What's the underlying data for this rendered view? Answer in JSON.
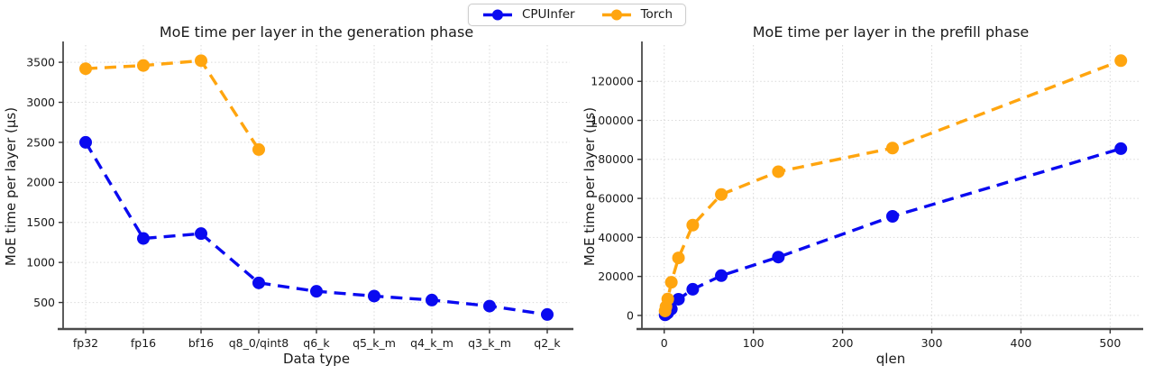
{
  "page": {
    "background": "#ffffff",
    "text_color": "#1a1a1a",
    "grid_color": "#d9d9d9",
    "spine_color": "#4a4a4a"
  },
  "legend": {
    "position": "top-center",
    "entries": [
      {
        "label": "CPUInfer",
        "color": "#0a0af0"
      },
      {
        "label": "Torch",
        "color": "#ffa50f"
      }
    ]
  },
  "chart_data": [
    {
      "type": "line",
      "title": "MoE time per layer in the generation phase",
      "xlabel": "Data type",
      "ylabel": "MoE time per layer (µs)",
      "x_type": "categorical",
      "categories": [
        "fp32",
        "fp16",
        "bf16",
        "q8_0/qint8",
        "q6_k",
        "q5_k_m",
        "q4_k_m",
        "q3_k_m",
        "q2_k"
      ],
      "series": [
        {
          "name": "CPUInfer",
          "color": "#0a0af0",
          "values": [
            2500,
            1300,
            1360,
            745,
            640,
            580,
            530,
            455,
            350
          ]
        },
        {
          "name": "Torch",
          "color": "#ffa50f",
          "values": [
            3420,
            3460,
            3520,
            2410,
            null,
            null,
            null,
            null,
            null
          ]
        }
      ],
      "yticks": [
        500,
        1000,
        1500,
        2000,
        2500,
        3000,
        3500
      ],
      "ylim": [
        180,
        3715
      ],
      "grid": true,
      "line_style": "dashed",
      "marker": "circle",
      "legend_position": "shared-top"
    },
    {
      "type": "line",
      "title": "MoE time per layer in the prefill phase",
      "xlabel": "qlen",
      "ylabel": "MoE time per layer (µs)",
      "x_type": "numeric",
      "x": [
        1,
        2,
        4,
        8,
        16,
        32,
        64,
        128,
        256,
        512
      ],
      "series": [
        {
          "name": "CPUInfer",
          "color": "#0a0af0",
          "values": [
            300,
            600,
            1300,
            3300,
            8300,
            13400,
            20400,
            29900,
            50800,
            85500
          ]
        },
        {
          "name": "Torch",
          "color": "#ffa50f",
          "values": [
            2300,
            4500,
            8400,
            17000,
            29500,
            46300,
            62000,
            73700,
            85800,
            130600
          ]
        }
      ],
      "xticks": [
        0,
        100,
        200,
        300,
        400,
        500
      ],
      "xlim": [
        -25,
        533
      ],
      "yticks": [
        0,
        20000,
        40000,
        60000,
        80000,
        100000,
        120000
      ],
      "ylim": [
        -6500,
        138600
      ],
      "grid": true,
      "line_style": "dashed",
      "marker": "circle",
      "legend_position": "shared-top"
    }
  ]
}
